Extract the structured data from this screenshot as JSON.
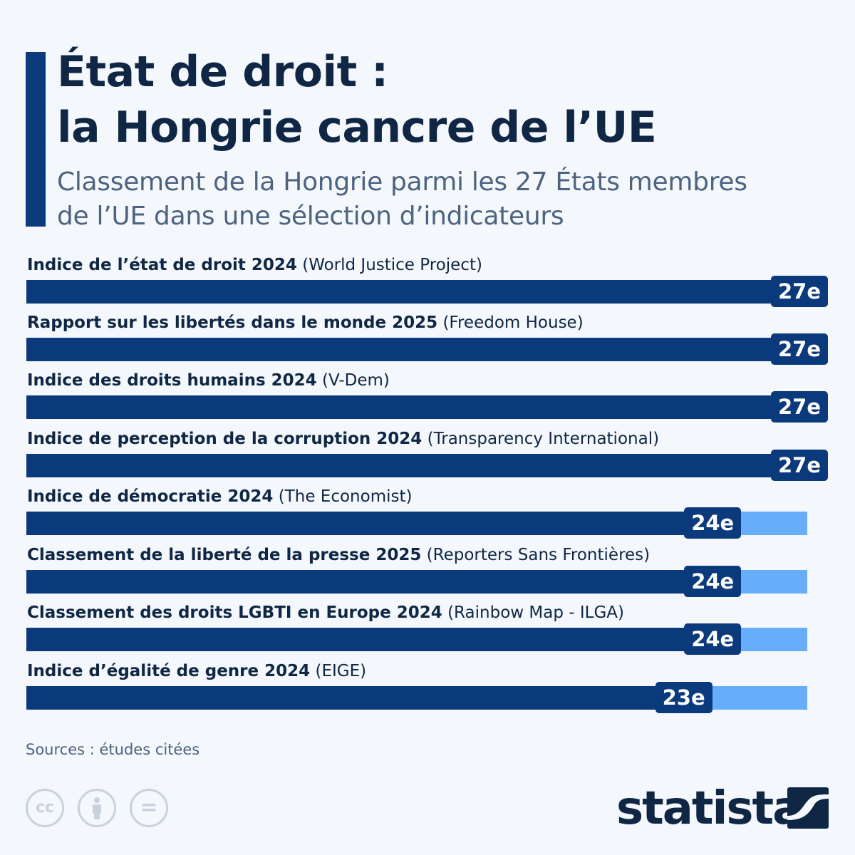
{
  "header": {
    "title_line1": "État de droit :",
    "title_line2": "la Hongrie cancre de l’UE",
    "subtitle_line1": "Classement de la Hongrie parmi les 27 États membres",
    "subtitle_line2": "de l’UE dans une sélection d’indicateurs"
  },
  "chart_data": {
    "type": "bar",
    "orientation": "horizontal",
    "xlim": [
      0,
      27
    ],
    "categories": [
      {
        "name": "Indice de l’état de droit 2024",
        "source": "(World Justice Project)"
      },
      {
        "name": "Rapport sur les libertés dans le monde 2025",
        "source": "(Freedom House)"
      },
      {
        "name": "Indice des droits humains 2024",
        "source": "(V-Dem)"
      },
      {
        "name": "Indice de perception de la corruption 2024",
        "source": "(Transparency International)"
      },
      {
        "name": "Indice de démocratie 2024",
        "source": "(The Economist)"
      },
      {
        "name": "Classement de la liberté de la presse 2025",
        "source": "(Reporters Sans Frontières)"
      },
      {
        "name": "Classement des droits LGBTI en Europe 2024",
        "source": "(Rainbow Map - ILGA)"
      },
      {
        "name": "Indice d’égalité de genre 2024",
        "source": "(EIGE)"
      }
    ],
    "values": [
      27,
      27,
      27,
      27,
      24,
      24,
      24,
      23
    ],
    "data_labels": [
      "27e",
      "27e",
      "27e",
      "27e",
      "24e",
      "24e",
      "24e",
      "23e"
    ],
    "colors": {
      "rank": "#0b3a7c",
      "remaining": "#66aefa"
    }
  },
  "footer": {
    "source": "Sources : études citées",
    "license_icons": [
      "cc-icon",
      "attribution-icon",
      "no-derivatives-icon"
    ],
    "license_glyphs": [
      "cc",
      "="
    ],
    "logo_text": "statista"
  }
}
